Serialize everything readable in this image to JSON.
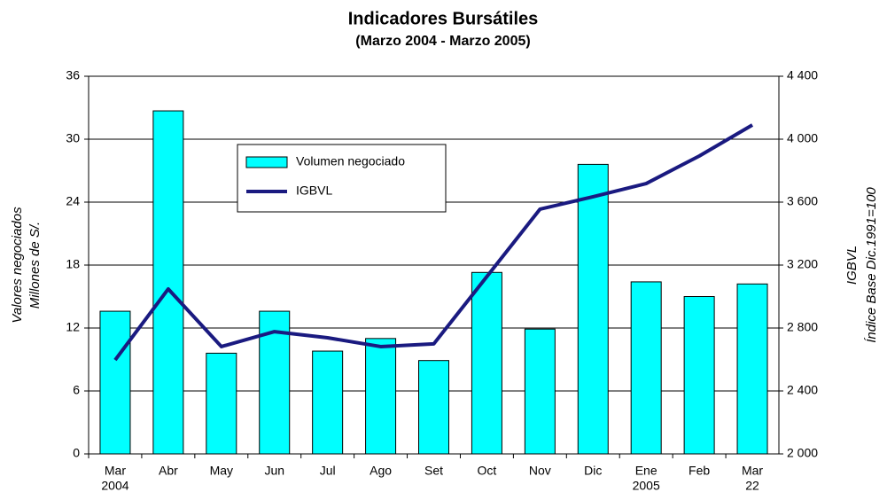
{
  "chart_data": {
    "type": "bar_line",
    "title": "Indicadores Bursátiles",
    "subtitle": "(Marzo 2004 - Marzo 2005)",
    "y_label": [
      "Valores negociados",
      "Millones de S/."
    ],
    "y2_label": [
      "IGBVL",
      "Índice Base Dic.1991=100"
    ],
    "categories": [
      "Mar",
      "Abr",
      "May",
      "Jun",
      "Jul",
      "Ago",
      "Set",
      "Oct",
      "Nov",
      "Dic",
      "Ene",
      "Feb",
      "Mar"
    ],
    "category_sublabels": [
      "2004",
      null,
      null,
      null,
      null,
      null,
      null,
      null,
      null,
      null,
      "2005",
      null,
      "22"
    ],
    "series": [
      {
        "name": "Volumen negociado",
        "type": "bar",
        "color": "#00ffff",
        "values": [
          13.6,
          32.7,
          9.6,
          13.6,
          9.8,
          11.0,
          8.9,
          17.3,
          11.9,
          27.6,
          16.4,
          15.0,
          16.2
        ]
      },
      {
        "name": "IGBVL",
        "type": "line",
        "axis": "y2",
        "color": "#1a1a80",
        "values": [
          2597,
          3048,
          2682,
          2777,
          2738,
          2682,
          2699,
          3127,
          3555,
          3634,
          3718,
          3893,
          4090
        ]
      }
    ],
    "ylim": [
      0,
      36
    ],
    "yticks": [
      0,
      6,
      12,
      18,
      24,
      30,
      36
    ],
    "y2lim": [
      2000,
      4400
    ],
    "y2ticks": [
      {
        "value": 2000,
        "label": "2 000"
      },
      {
        "value": 2400,
        "label": "2 400"
      },
      {
        "value": 2800,
        "label": "2 800"
      },
      {
        "value": 3200,
        "label": "3 200"
      },
      {
        "value": 3600,
        "label": "3 600"
      },
      {
        "value": 4000,
        "label": "4 000"
      },
      {
        "value": 4400,
        "label": "4 400"
      }
    ],
    "grid": true
  }
}
